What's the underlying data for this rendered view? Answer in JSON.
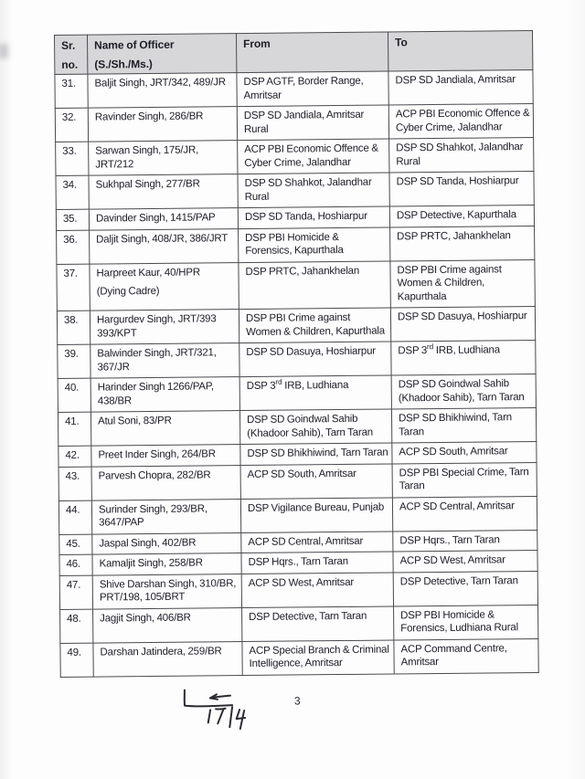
{
  "document": {
    "page_number": "3",
    "handwritten_note": "17|4"
  },
  "colors": {
    "header_bg": "#d7d7d9",
    "border": "#4a4a4f",
    "text": "#1d1d28",
    "paper": "#fdfdfd"
  },
  "table": {
    "header": {
      "sr_line1": "Sr.",
      "sr_line2": "no.",
      "name_line1": "Name of Officer",
      "name_line2": "(S./Sh./Ms.)",
      "from": "From",
      "to": "To"
    },
    "rows": [
      {
        "sr": "31.",
        "name": "Baljit Singh, JRT/342, 489/JR",
        "from": "DSP AGTF, Border Range, Amritsar",
        "to": "DSP SD Jandiala, Amritsar"
      },
      {
        "sr": "32.",
        "name": "Ravinder Singh, 286/BR",
        "from": "DSP SD Jandiala, Amritsar Rural",
        "to": "ACP PBI Economic Offence & Cyber Crime, Jalandhar"
      },
      {
        "sr": "33.",
        "name": "Sarwan Singh, 175/JR, JRT/212",
        "from": "ACP PBI Economic Offence & Cyber Crime, Jalandhar",
        "to": "DSP SD Shahkot, Jalandhar Rural"
      },
      {
        "sr": "34.",
        "name": "Sukhpal Singh, 277/BR",
        "from": "DSP SD Shahkot, Jalandhar Rural",
        "to": "DSP SD Tanda, Hoshiarpur"
      },
      {
        "sr": "35.",
        "name": "Davinder Singh, 1415/PAP",
        "from": "DSP SD Tanda, Hoshiarpur",
        "to": "DSP Detective, Kapurthala"
      },
      {
        "sr": "36.",
        "name": "Daljit Singh, 408/JR, 386/JRT",
        "from": "DSP PBI Homicide & Forensics, Kapurthala",
        "to": "DSP PRTC, Jahankhelan"
      },
      {
        "sr": "37.",
        "name": "Harpreet Kaur, 40/HPR",
        "name2": "(Dying Cadre)",
        "from": "DSP PRTC, Jahankhelan",
        "to": "DSP PBI Crime against Women & Children, Kapurthala"
      },
      {
        "sr": "38.",
        "name": "Hargurdev Singh, JRT/393 393/KPT",
        "from": "DSP PBI Crime against Women & Children, Kapurthala",
        "to": "DSP SD Dasuya, Hoshiarpur"
      },
      {
        "sr": "39.",
        "name": "Balwinder Singh, JRT/321, 367/JR",
        "from": "DSP SD Dasuya, Hoshiarpur",
        "to": "DSP 3rd IRB, Ludhiana"
      },
      {
        "sr": "40.",
        "name": "Harinder Singh 1266/PAP, 438/BR",
        "from": "DSP 3rd IRB, Ludhiana",
        "to": "DSP SD Goindwal Sahib (Khadoor Sahib), Tarn Taran"
      },
      {
        "sr": "41.",
        "name": "Atul Soni, 83/PR",
        "from": "DSP SD Goindwal Sahib (Khadoor Sahib), Tarn Taran",
        "to": "DSP SD Bhikhiwind, Tarn Taran"
      },
      {
        "sr": "42.",
        "name": "Preet Inder Singh, 264/BR",
        "from": "DSP SD Bhikhiwind, Tarn Taran",
        "to": "ACP SD South, Amritsar"
      },
      {
        "sr": "43.",
        "name": "Parvesh Chopra, 282/BR",
        "from": "ACP SD South, Amritsar",
        "to": "DSP PBI Special Crime, Tarn Taran"
      },
      {
        "sr": "44.",
        "name": "Surinder Singh, 293/BR, 3647/PAP",
        "from": "DSP Vigilance Bureau, Punjab",
        "to": "ACP SD Central, Amritsar"
      },
      {
        "sr": "45.",
        "name": "Jaspal Singh, 402/BR",
        "from": "ACP SD Central, Amritsar",
        "to": "DSP Hqrs., Tarn Taran"
      },
      {
        "sr": "46.",
        "name": "Kamaljit Singh, 258/BR",
        "from": "DSP Hqrs., Tarn Taran",
        "to": "ACP SD West, Amritsar"
      },
      {
        "sr": "47.",
        "name": "Shive Darshan Singh, 310/BR, PRT/198, 105/BRT",
        "from": "ACP SD West, Amritsar",
        "to": "DSP Detective, Tarn Taran"
      },
      {
        "sr": "48.",
        "name": "Jagjit Singh, 406/BR",
        "from": "DSP Detective, Tarn Taran",
        "to": "DSP PBI Homicide & Forensics, Ludhiana Rural"
      },
      {
        "sr": "49.",
        "name": "Darshan Jatindera, 259/BR",
        "from": "ACP Special Branch & Criminal Intelligence, Amritsar",
        "to": "ACP Command Centre, Amritsar"
      }
    ]
  }
}
